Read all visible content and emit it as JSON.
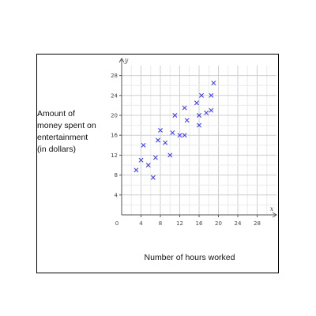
{
  "chart_data": {
    "type": "scatter",
    "title": "",
    "xlabel": "Number of hours worked",
    "ylabel_lines": [
      "Amount of",
      "money spent on",
      "entertainment",
      "(in dollars)"
    ],
    "x_axis_letter": "x",
    "y_axis_letter": "y",
    "xlim": [
      0,
      32
    ],
    "ylim": [
      0,
      30
    ],
    "xticks": [
      4,
      8,
      12,
      16,
      20,
      24,
      28
    ],
    "yticks": [
      4,
      8,
      12,
      16,
      20,
      24,
      28
    ],
    "origin_label": "0",
    "grid": true,
    "marker": "x",
    "marker_color": "#3333ff",
    "points": [
      {
        "x": 3,
        "y": 9
      },
      {
        "x": 4,
        "y": 11
      },
      {
        "x": 4.5,
        "y": 14
      },
      {
        "x": 5.5,
        "y": 10
      },
      {
        "x": 6.5,
        "y": 7.5
      },
      {
        "x": 7,
        "y": 11.5
      },
      {
        "x": 7.5,
        "y": 15
      },
      {
        "x": 8,
        "y": 17
      },
      {
        "x": 9,
        "y": 14.5
      },
      {
        "x": 10,
        "y": 12
      },
      {
        "x": 10.5,
        "y": 16.5
      },
      {
        "x": 11,
        "y": 20
      },
      {
        "x": 12,
        "y": 16
      },
      {
        "x": 13,
        "y": 16
      },
      {
        "x": 13,
        "y": 21.5
      },
      {
        "x": 13.5,
        "y": 19
      },
      {
        "x": 15.5,
        "y": 22.5
      },
      {
        "x": 16,
        "y": 18
      },
      {
        "x": 16,
        "y": 20
      },
      {
        "x": 16.5,
        "y": 24
      },
      {
        "x": 17.5,
        "y": 20.5
      },
      {
        "x": 18.5,
        "y": 24
      },
      {
        "x": 18.5,
        "y": 21
      },
      {
        "x": 19,
        "y": 26.5
      }
    ]
  }
}
